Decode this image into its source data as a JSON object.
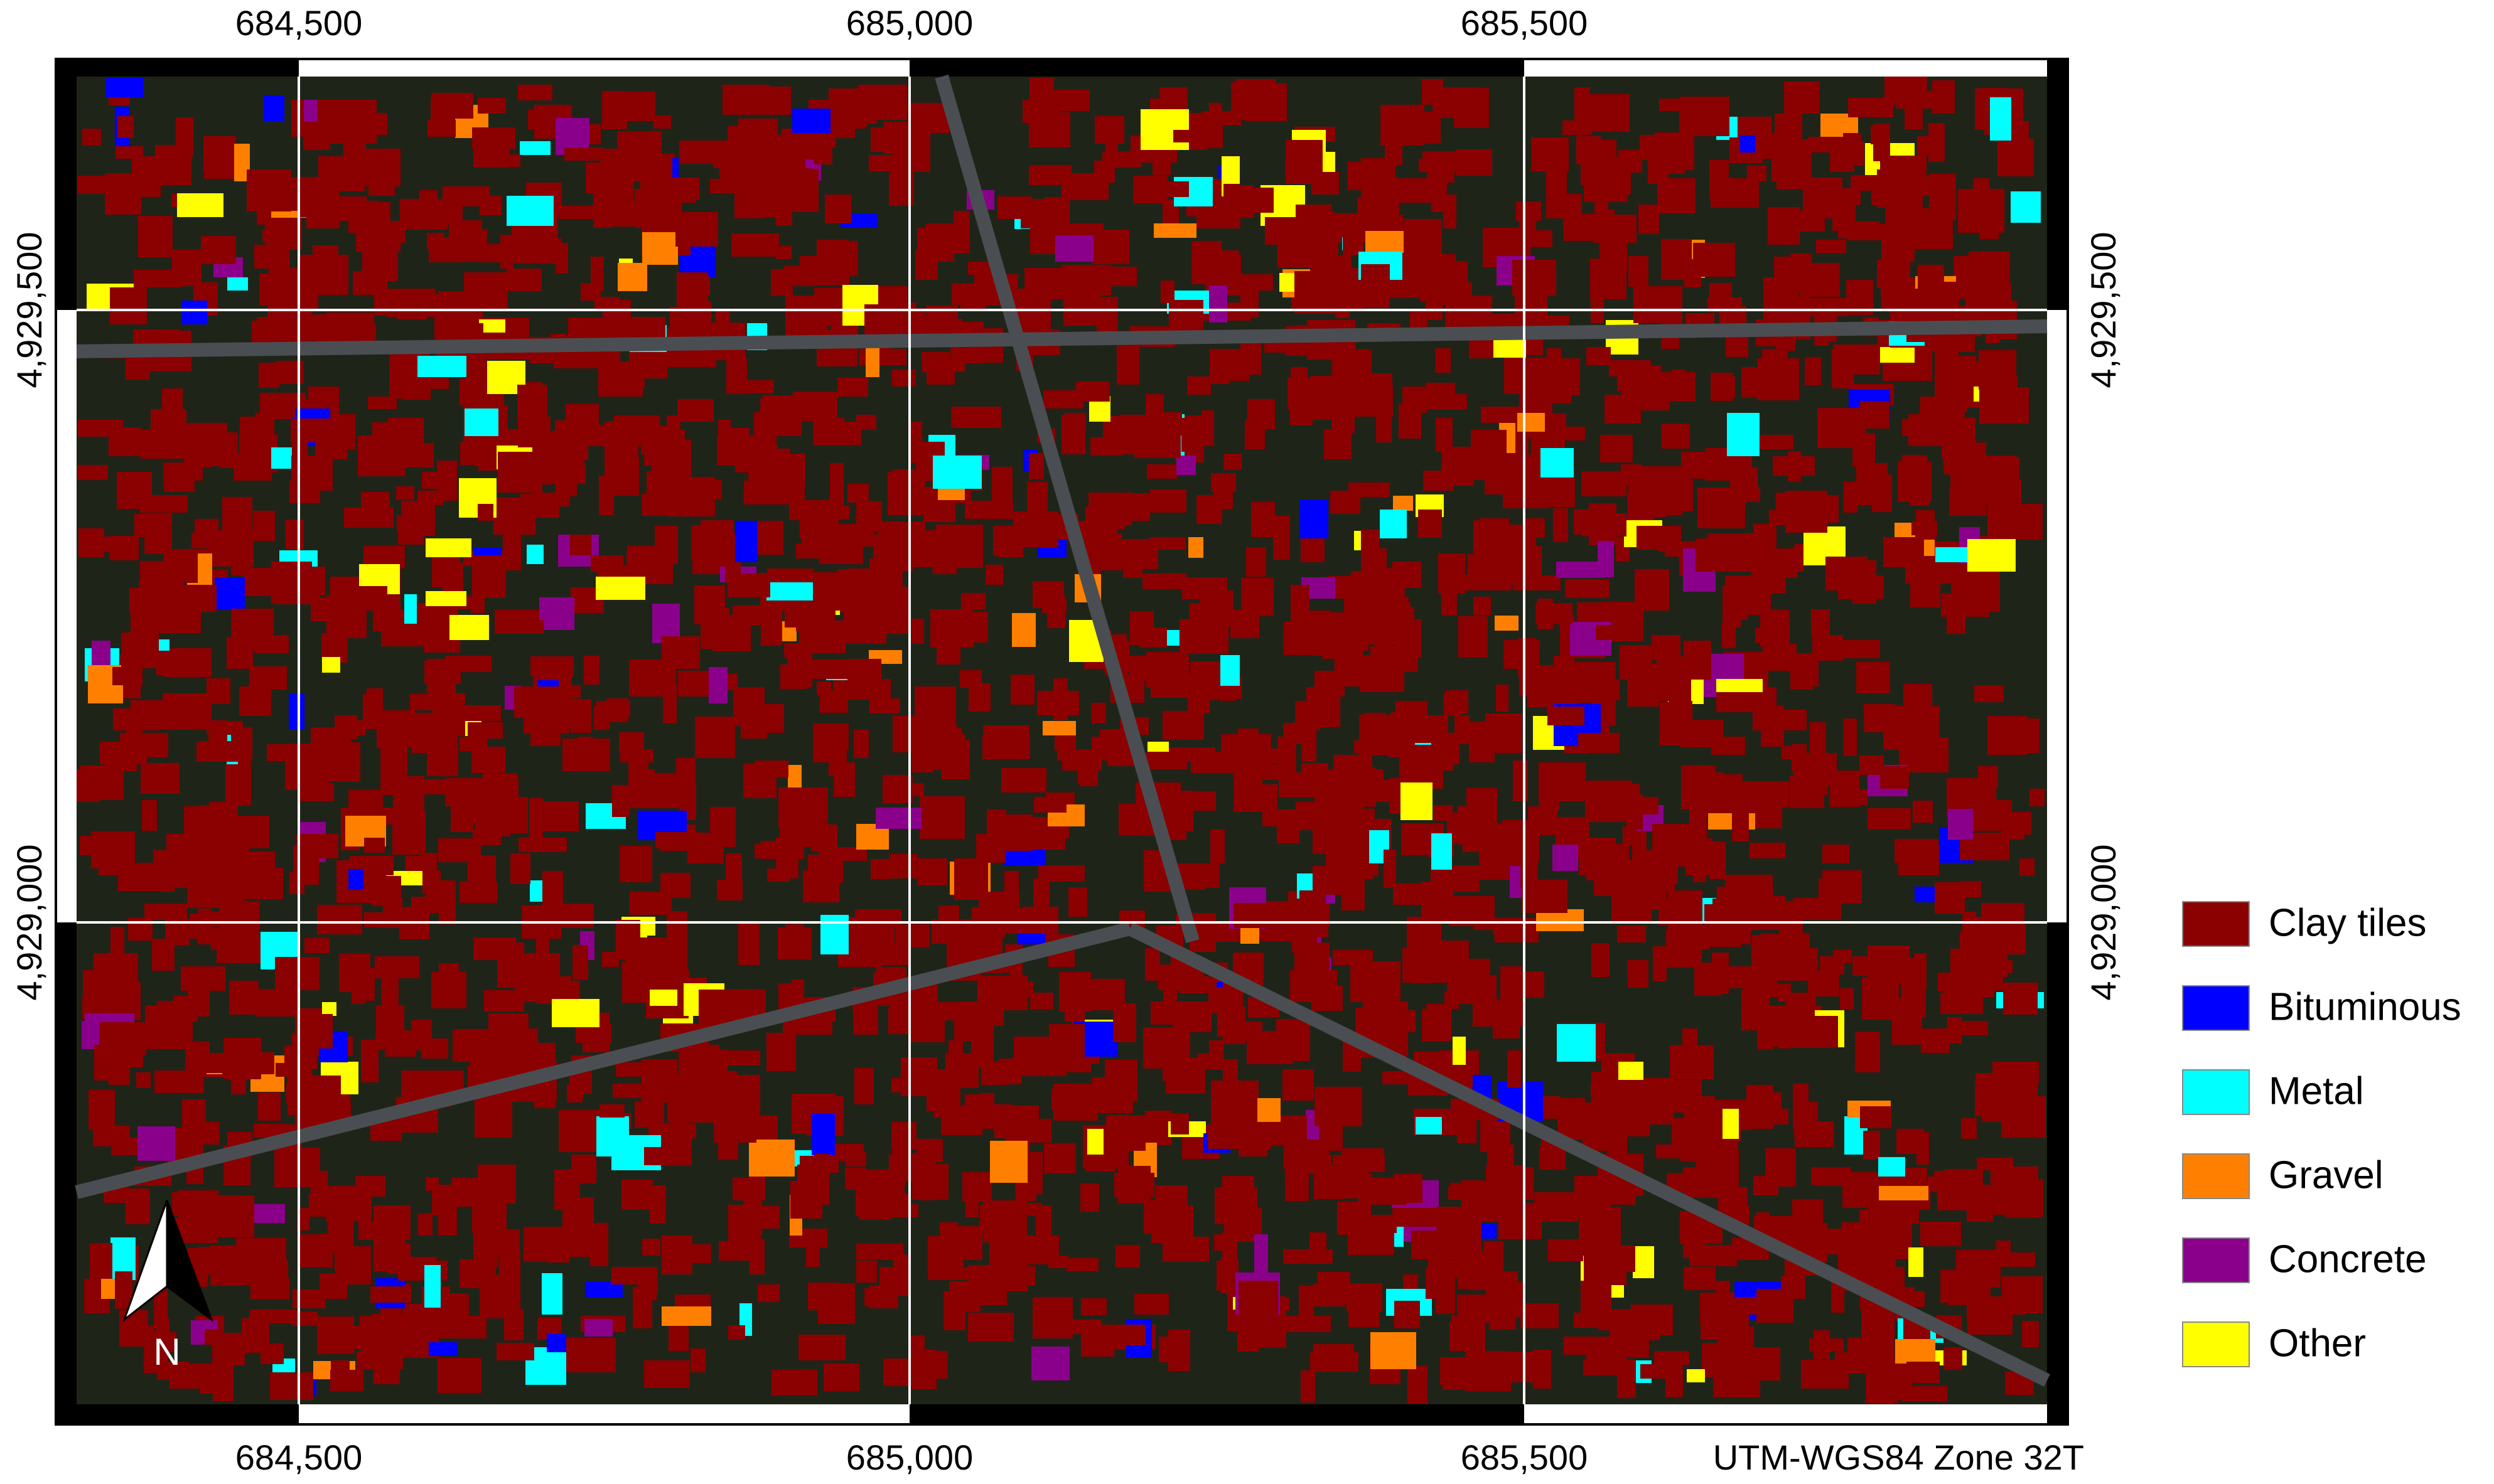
{
  "map": {
    "x_labels": [
      "684,500",
      "685,000",
      "685,500"
    ],
    "y_labels": [
      "4,929,500",
      "4,929,000"
    ],
    "legend": [
      {
        "label": "Clay tiles",
        "color": "#8b0000"
      },
      {
        "label": "Bituminous",
        "color": "#0000ff"
      },
      {
        "label": "Metal",
        "color": "#00ffff"
      },
      {
        "label": "Gravel",
        "color": "#ff8000"
      },
      {
        "label": "Concrete",
        "color": "#8b008b"
      },
      {
        "label": "Other",
        "color": "#ffff00"
      }
    ],
    "north": "N",
    "projection": "UTM-WGS84 Zone 32T"
  }
}
